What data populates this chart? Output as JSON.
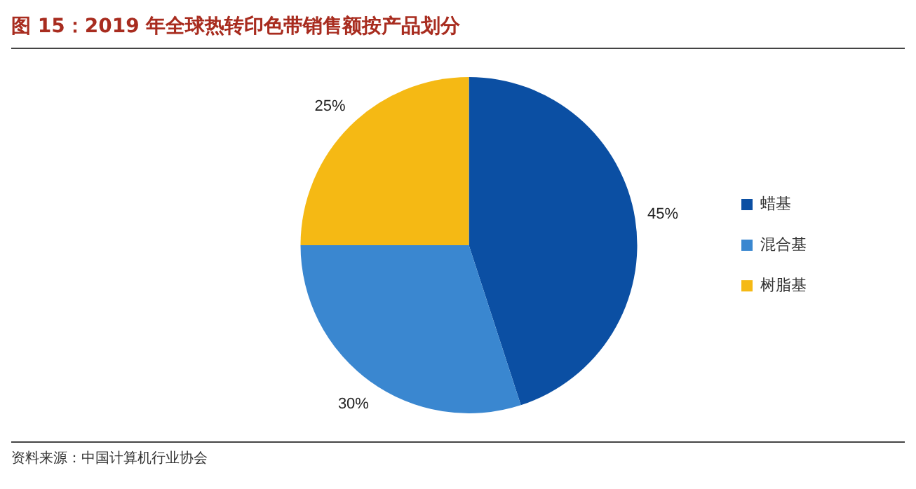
{
  "chart_data": {
    "type": "pie",
    "title": "图 15：2019 年全球热转印色带销售额按产品划分",
    "annotations": [
      "资料来源：中国计算机行业协会"
    ],
    "categories": [
      "蜡基",
      "混合基",
      "树脂基"
    ],
    "values": [
      45,
      30,
      25
    ],
    "colors": [
      "#0b4fa3",
      "#3a87d0",
      "#f5b914"
    ],
    "value_labels": [
      "45%",
      "30%",
      "25%"
    ],
    "legend": "right"
  }
}
